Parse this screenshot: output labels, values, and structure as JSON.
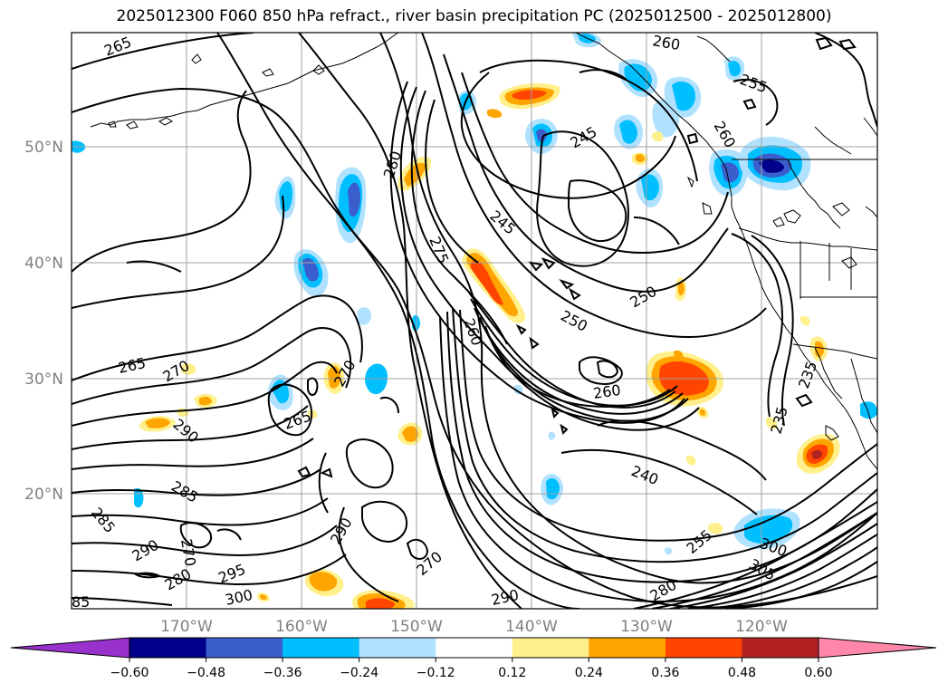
{
  "title": "2025012300 F060 850 hPa refract., river basin precipitation PC (2025012500 - 2025012800)",
  "map": {
    "lat_labels": [
      "50°N",
      "40°N",
      "30°N",
      "20°N"
    ],
    "lon_labels": [
      "170°W",
      "160°W",
      "150°W",
      "140°W",
      "130°W",
      "120°W"
    ],
    "contour_labels": [
      "265",
      "260",
      "255",
      "245",
      "260",
      "250",
      "245",
      "275",
      "280",
      "250",
      "265",
      "270",
      "260",
      "270",
      "290",
      "260",
      "265",
      "240",
      "285",
      "285",
      "290",
      "290",
      "270",
      "280",
      "295",
      "300",
      "270",
      "290",
      "280",
      "255",
      "300",
      "305",
      "235",
      "235",
      "85"
    ]
  },
  "colorbar": {
    "ticks": [
      "−0.60",
      "−0.48",
      "−0.36",
      "−0.24",
      "−0.12",
      "0.12",
      "0.24",
      "0.36",
      "0.48",
      "0.60"
    ],
    "colors": [
      "#9932cc",
      "#00008b",
      "#3a5fcd",
      "#00bfff",
      "#b0e2ff",
      "#ffffff",
      "#fff08c",
      "#ffa500",
      "#ff4500",
      "#b22222",
      "#ff88aa"
    ]
  }
}
